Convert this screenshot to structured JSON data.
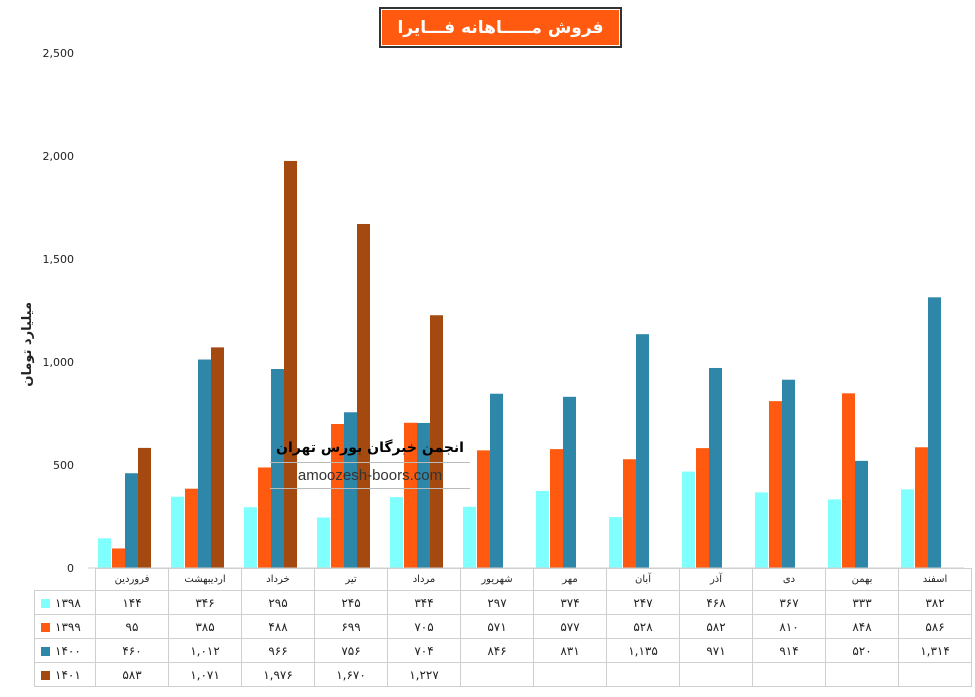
{
  "chart_data": {
    "type": "bar",
    "title": "فروش مـــــاهانه فـــایرا",
    "xlabel": "",
    "ylabel": "میلیارد تومان",
    "ylim": [
      0,
      2500
    ],
    "yticks": [
      "0",
      "500",
      "1,000",
      "1,500",
      "2,000",
      "2,500"
    ],
    "categories": [
      "فروردین",
      "اردیبهشت",
      "خرداد",
      "تیر",
      "مرداد",
      "شهریور",
      "مهر",
      "آبان",
      "آذر",
      "دی",
      "بهمن",
      "اسفند"
    ],
    "series": [
      {
        "name": "۱۳۹۸",
        "color": "#80ffff",
        "values": [
          144,
          346,
          295,
          245,
          344,
          297,
          374,
          247,
          468,
          367,
          333,
          382
        ],
        "labels": [
          "۱۴۴",
          "۳۴۶",
          "۲۹۵",
          "۲۴۵",
          "۳۴۴",
          "۲۹۷",
          "۳۷۴",
          "۲۴۷",
          "۴۶۸",
          "۳۶۷",
          "۳۳۳",
          "۳۸۲"
        ]
      },
      {
        "name": "۱۳۹۹",
        "color": "#ff5a0f",
        "values": [
          95,
          385,
          488,
          699,
          705,
          571,
          577,
          528,
          582,
          810,
          848,
          586
        ],
        "labels": [
          "۹۵",
          "۳۸۵",
          "۴۸۸",
          "۶۹۹",
          "۷۰۵",
          "۵۷۱",
          "۵۷۷",
          "۵۲۸",
          "۵۸۲",
          "۸۱۰",
          "۸۴۸",
          "۵۸۶"
        ]
      },
      {
        "name": "۱۴۰۰",
        "color": "#2e86a8",
        "values": [
          460,
          1012,
          966,
          756,
          704,
          846,
          831,
          1135,
          971,
          914,
          520,
          1314
        ],
        "labels": [
          "۴۶۰",
          "۱,۰۱۲",
          "۹۶۶",
          "۷۵۶",
          "۷۰۴",
          "۸۴۶",
          "۸۳۱",
          "۱,۱۳۵",
          "۹۷۱",
          "۹۱۴",
          "۵۲۰",
          "۱,۳۱۴"
        ]
      },
      {
        "name": "۱۴۰۱",
        "color": "#a4490f",
        "values": [
          583,
          1071,
          1976,
          1670,
          1227,
          null,
          null,
          null,
          null,
          null,
          null,
          null
        ],
        "labels": [
          "۵۸۳",
          "۱,۰۷۱",
          "۱,۹۷۶",
          "۱,۶۷۰",
          "۱,۲۲۷",
          "",
          "",
          "",
          "",
          "",
          "",
          ""
        ]
      }
    ],
    "grid": false,
    "legend": "table-left"
  },
  "watermark": {
    "title": "انجمن خبرگان بورس تهران",
    "site": "amoozesh-boors.com"
  }
}
